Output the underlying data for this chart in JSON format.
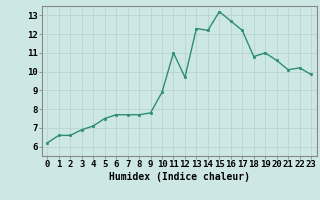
{
  "x": [
    0,
    1,
    2,
    3,
    4,
    5,
    6,
    7,
    8,
    9,
    10,
    11,
    12,
    13,
    14,
    15,
    16,
    17,
    18,
    19,
    20,
    21,
    22,
    23
  ],
  "y": [
    6.2,
    6.6,
    6.6,
    6.9,
    7.1,
    7.5,
    7.7,
    7.7,
    7.7,
    7.8,
    8.9,
    11.0,
    9.7,
    12.3,
    12.2,
    13.2,
    12.7,
    12.2,
    10.8,
    11.0,
    10.6,
    10.1,
    10.2,
    9.85
  ],
  "xlabel": "Humidex (Indice chaleur)",
  "xlim": [
    -0.5,
    23.5
  ],
  "ylim": [
    5.5,
    13.5
  ],
  "yticks": [
    6,
    7,
    8,
    9,
    10,
    11,
    12,
    13
  ],
  "xticks": [
    0,
    1,
    2,
    3,
    4,
    5,
    6,
    7,
    8,
    9,
    10,
    11,
    12,
    13,
    14,
    15,
    16,
    17,
    18,
    19,
    20,
    21,
    22,
    23
  ],
  "line_color": "#2e8b7a",
  "marker_color": "#2e8b7a",
  "bg_color": "#cde8e4",
  "grid_color": "#b8d4d0",
  "spine_color": "#888888",
  "xlabel_fontsize": 7,
  "tick_fontsize": 6.5
}
